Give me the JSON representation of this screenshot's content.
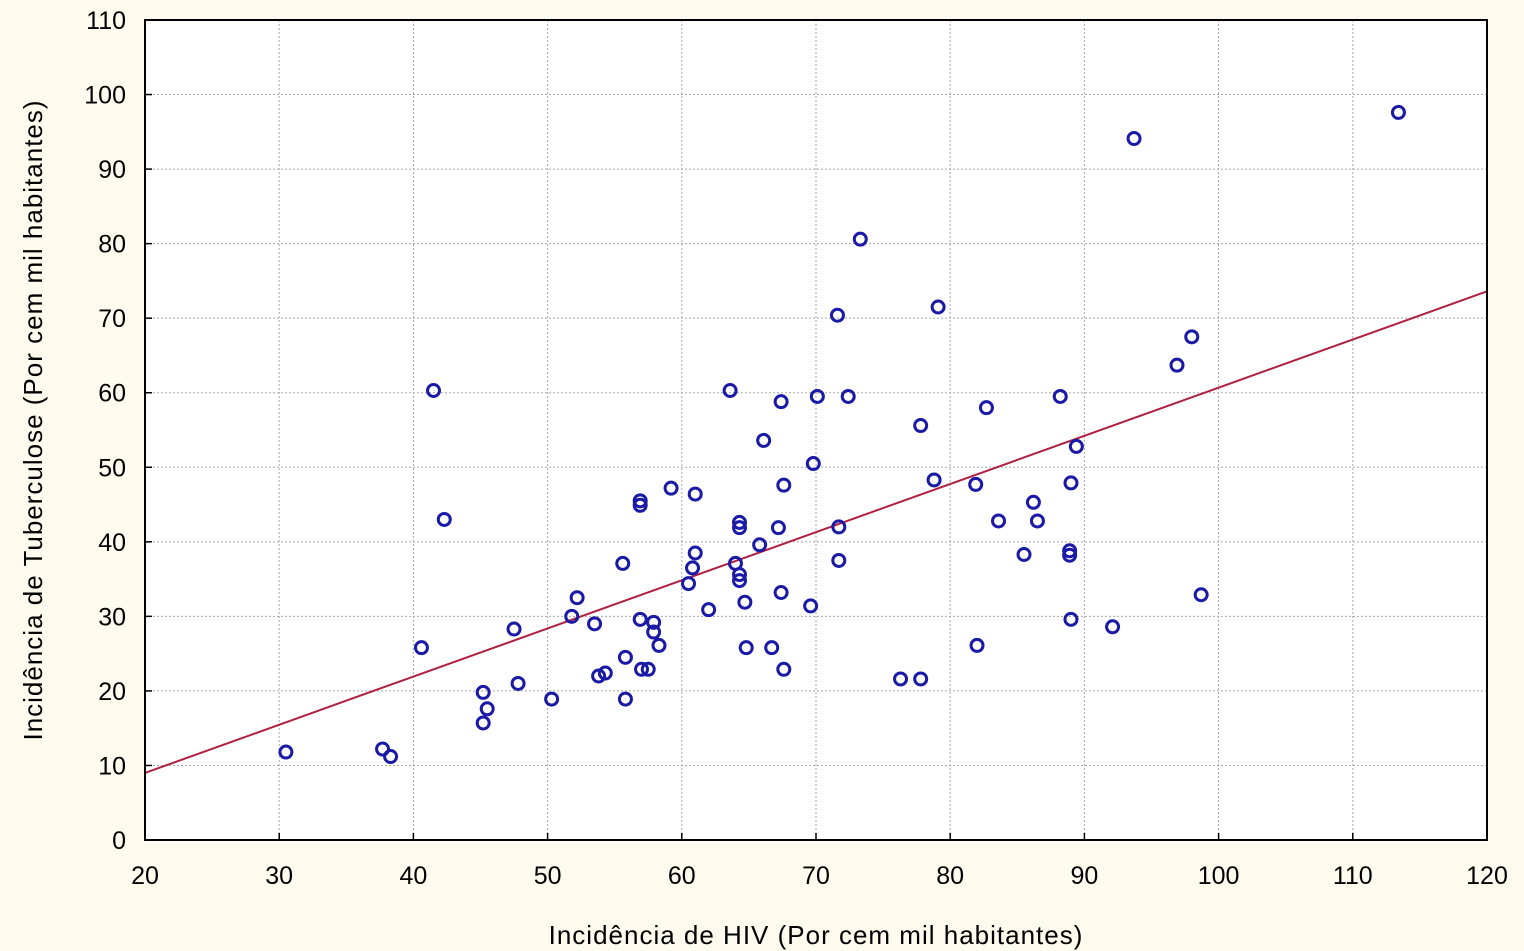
{
  "colors": {
    "background": "#fefbee",
    "plot_background": "#ffffff",
    "grid": "#a8a8a8",
    "point": "#1a1aa6",
    "trend_line": "#b02040",
    "axis": "#000000"
  },
  "chart_data": {
    "type": "scatter",
    "title": "",
    "xlabel": "Incidência de HIV (Por cem mil habitantes)",
    "ylabel": "Incidência de Tuberculose (Por cem mil habitantes)",
    "xlim": [
      20,
      120
    ],
    "ylim": [
      0,
      110
    ],
    "x_ticks": [
      20,
      30,
      40,
      50,
      60,
      70,
      80,
      90,
      100,
      110,
      120
    ],
    "y_ticks": [
      0,
      10,
      20,
      30,
      40,
      50,
      60,
      70,
      80,
      90,
      100,
      110
    ],
    "grid": true,
    "points": [
      [
        30.5,
        11.8
      ],
      [
        37.7,
        12.2
      ],
      [
        38.3,
        11.2
      ],
      [
        40.6,
        25.8
      ],
      [
        41.5,
        60.3
      ],
      [
        42.3,
        43.0
      ],
      [
        45.2,
        19.8
      ],
      [
        45.5,
        17.6
      ],
      [
        45.2,
        15.7
      ],
      [
        47.5,
        28.3
      ],
      [
        47.8,
        21.0
      ],
      [
        50.3,
        18.9
      ],
      [
        51.8,
        30.0
      ],
      [
        52.2,
        32.5
      ],
      [
        53.5,
        29.0
      ],
      [
        53.8,
        22.0
      ],
      [
        54.3,
        22.4
      ],
      [
        55.6,
        37.1
      ],
      [
        55.8,
        24.5
      ],
      [
        55.8,
        18.9
      ],
      [
        56.9,
        45.5
      ],
      [
        56.9,
        44.9
      ],
      [
        56.9,
        29.6
      ],
      [
        57.0,
        22.9
      ],
      [
        57.5,
        22.9
      ],
      [
        57.9,
        29.2
      ],
      [
        57.9,
        27.9
      ],
      [
        58.3,
        26.1
      ],
      [
        59.2,
        47.2
      ],
      [
        60.5,
        34.4
      ],
      [
        60.8,
        36.5
      ],
      [
        61.0,
        38.5
      ],
      [
        61.0,
        46.4
      ],
      [
        62.0,
        30.9
      ],
      [
        63.6,
        60.3
      ],
      [
        64.0,
        37.1
      ],
      [
        64.3,
        42.6
      ],
      [
        64.3,
        41.9
      ],
      [
        64.3,
        35.6
      ],
      [
        64.3,
        34.8
      ],
      [
        64.7,
        31.9
      ],
      [
        64.8,
        25.8
      ],
      [
        65.8,
        39.6
      ],
      [
        66.1,
        53.6
      ],
      [
        66.7,
        25.8
      ],
      [
        67.2,
        41.9
      ],
      [
        67.4,
        33.2
      ],
      [
        67.4,
        58.8
      ],
      [
        67.6,
        47.6
      ],
      [
        67.6,
        22.9
      ],
      [
        69.6,
        31.4
      ],
      [
        69.8,
        50.5
      ],
      [
        70.1,
        59.5
      ],
      [
        71.6,
        70.4
      ],
      [
        71.7,
        42.0
      ],
      [
        71.7,
        37.5
      ],
      [
        72.4,
        59.5
      ],
      [
        73.3,
        80.6
      ],
      [
        76.3,
        21.6
      ],
      [
        77.8,
        21.6
      ],
      [
        77.8,
        55.6
      ],
      [
        78.8,
        48.3
      ],
      [
        79.1,
        71.5
      ],
      [
        81.9,
        47.7
      ],
      [
        82.0,
        26.1
      ],
      [
        82.7,
        58.0
      ],
      [
        83.6,
        42.8
      ],
      [
        85.5,
        38.3
      ],
      [
        86.2,
        45.3
      ],
      [
        86.5,
        42.8
      ],
      [
        88.2,
        59.5
      ],
      [
        88.9,
        38.8
      ],
      [
        88.9,
        38.2
      ],
      [
        89.0,
        47.9
      ],
      [
        89.0,
        29.6
      ],
      [
        89.4,
        52.8
      ],
      [
        92.1,
        28.6
      ],
      [
        93.7,
        94.1
      ],
      [
        96.9,
        63.7
      ],
      [
        98.0,
        67.5
      ],
      [
        98.7,
        32.9
      ],
      [
        113.4,
        97.6
      ]
    ],
    "trend_line": [
      [
        20,
        9.0
      ],
      [
        120,
        73.6
      ]
    ]
  }
}
